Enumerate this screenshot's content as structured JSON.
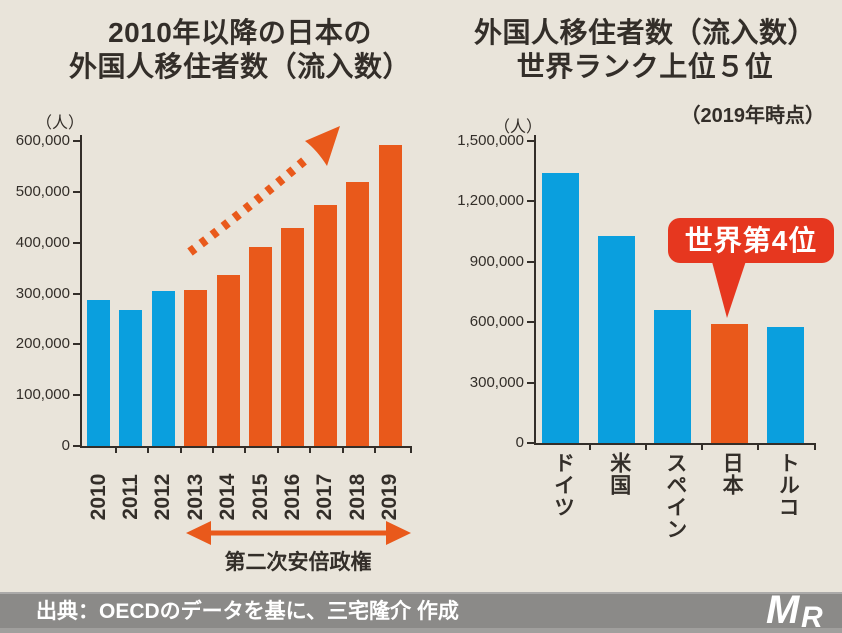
{
  "page": {
    "background": "#E9E4DA",
    "text_color": "#332E29"
  },
  "chart_data": [
    {
      "type": "bar",
      "title_lines": [
        "2010年以降の日本の",
        "外国人移住者数（流入数）"
      ],
      "unit_label": "（人）",
      "categories": [
        "2010",
        "2011",
        "2012",
        "2013",
        "2014",
        "2015",
        "2016",
        "2017",
        "2018",
        "2019"
      ],
      "values": [
        287000,
        267000,
        304000,
        307000,
        337000,
        391000,
        428000,
        475000,
        520000,
        592000
      ],
      "ylim": [
        0,
        600000
      ],
      "y_tick_values": [
        0,
        100000,
        200000,
        300000,
        400000,
        500000,
        600000
      ],
      "y_tick_labels": [
        "0",
        "100,000",
        "200,000",
        "300,000",
        "400,000",
        "500,000",
        "600,000"
      ],
      "grid": false,
      "legend": "none",
      "bar_color": "#0A9FDE",
      "highlight_color": "#E9591B",
      "highlight_from_index": 3,
      "annotations": {
        "trend_arrow": "dashed-orange-rising-arrow-icon",
        "era_label": "第二次安倍政権",
        "era_span_categories": [
          "2013",
          "2019"
        ]
      }
    },
    {
      "type": "bar",
      "title_lines": [
        "外国人移住者数（流入数）",
        "世界ランク上位５位"
      ],
      "subtitle": "（2019年時点）",
      "unit_label": "（人）",
      "categories": [
        "ドイツ",
        "米国",
        "スペイン",
        "日本",
        "トルコ"
      ],
      "values": [
        1340000,
        1030000,
        660000,
        590000,
        578000
      ],
      "ylim": [
        0,
        1500000
      ],
      "y_tick_values": [
        0,
        300000,
        600000,
        900000,
        1200000,
        1500000
      ],
      "y_tick_labels": [
        "0",
        "300,000",
        "600,000",
        "900,000",
        "1,200,000",
        "1,500,000"
      ],
      "grid": false,
      "legend": "none",
      "bar_color": "#0A9FDE",
      "highlight_color": "#E9591B",
      "highlight_index": 3,
      "callout": {
        "text": "世界第4位",
        "color": "#E6371F",
        "target_category": "日本"
      }
    }
  ],
  "footer": {
    "source_text": "出典：OECDのデータを基に、三宅隆介 作成",
    "background": "#8B8A88",
    "logo": "MR-monogram"
  }
}
